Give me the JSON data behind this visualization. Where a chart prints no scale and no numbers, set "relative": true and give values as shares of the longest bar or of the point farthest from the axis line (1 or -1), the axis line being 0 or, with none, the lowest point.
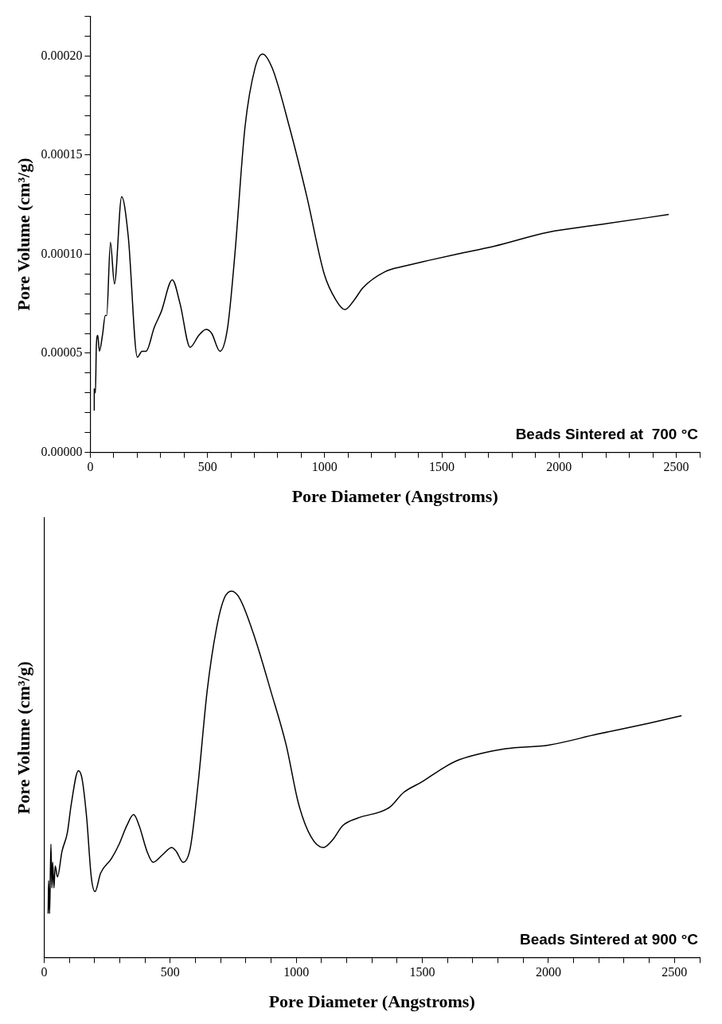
{
  "chart_data": [
    {
      "type": "line",
      "xlabel": "Pore Diameter (Angstroms)",
      "ylabel": "Pore Volume (cm³/g)",
      "annotations": [
        "Beads Sintered at  700 °C"
      ],
      "xlim": [
        0,
        2600
      ],
      "xticks": [
        0,
        {
          "value": 100,
          "label": null
        },
        {
          "value": 200,
          "label": null
        },
        {
          "value": 300,
          "label": null
        },
        {
          "value": 400,
          "label": null
        },
        500,
        {
          "value": 600,
          "label": null
        },
        {
          "value": 700,
          "label": null
        },
        {
          "value": 800,
          "label": null
        },
        {
          "value": 900,
          "label": null
        },
        1000,
        {
          "value": 1100,
          "label": null
        },
        {
          "value": 1200,
          "label": null
        },
        {
          "value": 1300,
          "label": null
        },
        {
          "value": 1400,
          "label": null
        },
        1500,
        {
          "value": 1600,
          "label": null
        },
        {
          "value": 1700,
          "label": null
        },
        {
          "value": 1800,
          "label": null
        },
        {
          "value": 1900,
          "label": null
        },
        2000,
        {
          "value": 2100,
          "label": null
        },
        {
          "value": 2200,
          "label": null
        },
        {
          "value": 2300,
          "label": null
        },
        {
          "value": 2400,
          "label": null
        },
        2500,
        {
          "value": 2600,
          "label": null
        }
      ],
      "ylim": [
        0,
        0.00022
      ],
      "yticks": [
        {
          "value": 0,
          "label": "0.00000"
        },
        {
          "value": 1e-05,
          "label": null
        },
        {
          "value": 2e-05,
          "label": null
        },
        {
          "value": 3e-05,
          "label": null
        },
        {
          "value": 4e-05,
          "label": null
        },
        {
          "value": 5e-05,
          "label": "0.00005"
        },
        {
          "value": 6e-05,
          "label": null
        },
        {
          "value": 7e-05,
          "label": null
        },
        {
          "value": 8e-05,
          "label": null
        },
        {
          "value": 9e-05,
          "label": null
        },
        {
          "value": 0.0001,
          "label": "0.00010"
        },
        {
          "value": 0.00011,
          "label": null
        },
        {
          "value": 0.00012,
          "label": null
        },
        {
          "value": 0.00013,
          "label": null
        },
        {
          "value": 0.00014,
          "label": null
        },
        {
          "value": 0.00015,
          "label": "0.00015"
        },
        {
          "value": 0.00016,
          "label": null
        },
        {
          "value": 0.00017,
          "label": null
        },
        {
          "value": 0.00018,
          "label": null
        },
        {
          "value": 0.00019,
          "label": null
        },
        {
          "value": 0.0002,
          "label": "0.00020"
        },
        {
          "value": 0.00021,
          "label": null
        },
        {
          "value": 0.00022,
          "label": null
        }
      ],
      "series": [
        {
          "color": "#000000",
          "x": [
            17,
            17,
            22,
            26,
            32,
            39,
            52,
            64,
            70,
            86,
            103,
            134,
            162,
            201,
            221,
            238,
            273,
            303,
            350,
            383,
            426,
            463,
            494,
            518,
            553,
            586,
            617,
            660,
            703,
            735,
            776,
            850,
            924,
            998,
            1047,
            1086,
            1127,
            1163,
            1255,
            1342,
            1450,
            1563,
            1723,
            1952,
            2181,
            2468
          ],
          "values": [
            2.1e-05,
            3.2e-05,
            3e-05,
            5.4e-05,
            5.9e-05,
            5.1e-05,
            5.9e-05,
            6.9e-05,
            6.9e-05,
            0.000106,
            8.5e-05,
            0.000129,
            0.000109,
            4.8e-05,
            5.1e-05,
            5.1e-05,
            6.3e-05,
            7.1e-05,
            8.7e-05,
            7.5e-05,
            5.3e-05,
            5.9e-05,
            6.2e-05,
            6e-05,
            5.1e-05,
            6.3e-05,
            0.0001,
            0.000164,
            0.000194,
            0.000201,
            0.000194,
            0.000164,
            0.000129,
            9e-05,
            7.7e-05,
            7.2e-05,
            7.7e-05,
            8.3e-05,
            9.1e-05,
            9.4e-05,
            9.7e-05,
            0.0001,
            0.000104,
            0.000111,
            0.000115,
            0.00012
          ]
        }
      ]
    },
    {
      "type": "line",
      "xlabel": "Pore Diameter (Angstroms)",
      "ylabel": "Pore Volume (cm³/g)",
      "annotations": [
        "Beads Sintered at 900 °C"
      ],
      "relative": true,
      "tick_labels": "x",
      "xlim": [
        0,
        2600
      ],
      "xticks": [
        0,
        {
          "value": 100,
          "label": null
        },
        {
          "value": 200,
          "label": null
        },
        {
          "value": 300,
          "label": null
        },
        {
          "value": 400,
          "label": null
        },
        500,
        {
          "value": 600,
          "label": null
        },
        {
          "value": 700,
          "label": null
        },
        {
          "value": 800,
          "label": null
        },
        {
          "value": 900,
          "label": null
        },
        1000,
        {
          "value": 1100,
          "label": null
        },
        {
          "value": 1200,
          "label": null
        },
        {
          "value": 1300,
          "label": null
        },
        {
          "value": 1400,
          "label": null
        },
        1500,
        {
          "value": 1600,
          "label": null
        },
        {
          "value": 1700,
          "label": null
        },
        {
          "value": 1800,
          "label": null
        },
        {
          "value": 1900,
          "label": null
        },
        2000,
        {
          "value": 2100,
          "label": null
        },
        {
          "value": 2200,
          "label": null
        },
        {
          "value": 2300,
          "label": null
        },
        {
          "value": 2400,
          "label": null
        },
        2500,
        {
          "value": 2600,
          "label": null
        }
      ],
      "series": [
        {
          "color": "#000000",
          "x": [
            16,
            18,
            22,
            27,
            31,
            34,
            39,
            44,
            53,
            71,
            92,
            108,
            136,
            150,
            169,
            187,
            202,
            224,
            267,
            298,
            328,
            355,
            377,
            408,
            432,
            469,
            506,
            524,
            551,
            580,
            610,
            647,
            684,
            714,
            743,
            776,
            837,
            898,
            960,
            1009,
            1058,
            1107,
            1143,
            1184,
            1241,
            1370,
            1425,
            1500,
            1589,
            1647,
            1830,
            2001,
            2196,
            2402,
            2528
          ],
          "values": [
            0.12,
            0.21,
            0.12,
            0.31,
            0.19,
            0.26,
            0.19,
            0.25,
            0.22,
            0.29,
            0.34,
            0.42,
            0.51,
            0.49,
            0.38,
            0.22,
            0.18,
            0.23,
            0.27,
            0.31,
            0.36,
            0.39,
            0.36,
            0.29,
            0.26,
            0.28,
            0.3,
            0.29,
            0.26,
            0.3,
            0.47,
            0.73,
            0.9,
            0.98,
            1,
            0.98,
            0.87,
            0.73,
            0.58,
            0.42,
            0.33,
            0.3,
            0.32,
            0.36,
            0.38,
            0.41,
            0.45,
            0.48,
            0.52,
            0.54,
            0.57,
            0.58,
            0.61,
            0.64,
            0.66
          ]
        }
      ]
    }
  ]
}
